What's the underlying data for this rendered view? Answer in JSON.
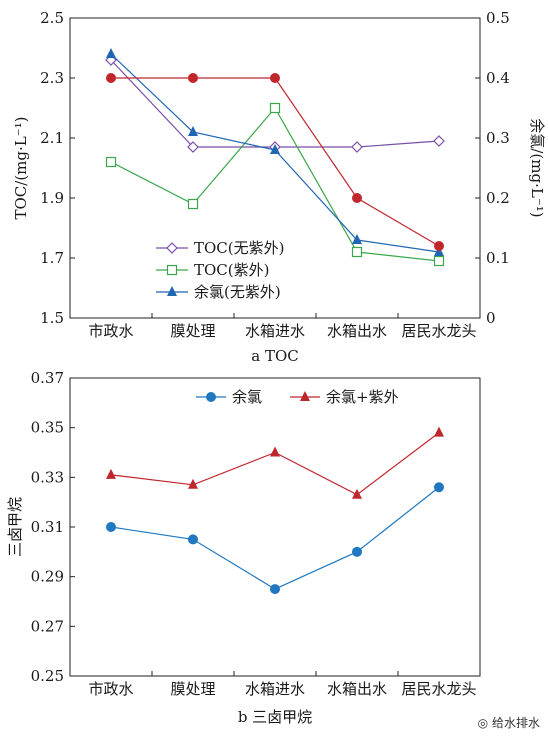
{
  "chart_data": [
    {
      "type": "line",
      "caption": "a TOC",
      "categories": [
        "市政水",
        "膜处理",
        "水箱进水",
        "水箱出水",
        "居民水龙头"
      ],
      "ylabel_left": "TOC/(mg·L⁻¹)",
      "ylabel_right": "余氯/(mg·L⁻¹)",
      "ylim_left": [
        1.5,
        2.5
      ],
      "yticks_left": [
        "1.5",
        "1.7",
        "1.9",
        "2.1",
        "2.3",
        "2.5"
      ],
      "ylim_right": [
        0,
        0.5
      ],
      "yticks_right": [
        "0",
        "0.1",
        "0.2",
        "0.3",
        "0.4",
        "0.5"
      ],
      "legend_position": "bottom-left",
      "series": [
        {
          "name": "TOC(无紫外)",
          "axis": "left",
          "color": "#7b4fa8",
          "marker": "diamond-open",
          "values": [
            2.36,
            2.07,
            2.07,
            2.07,
            2.09
          ]
        },
        {
          "name": "TOC(紫外)",
          "axis": "left",
          "color": "#3aa74b",
          "marker": "square-open",
          "values": [
            2.02,
            1.88,
            2.2,
            1.72,
            1.69
          ]
        },
        {
          "name": "余氯(无紫外)",
          "axis": "right",
          "color": "#1f66b3",
          "marker": "triangle",
          "values": [
            0.44,
            0.31,
            0.28,
            0.13,
            0.11
          ]
        },
        {
          "name": "",
          "axis": "right",
          "color": "#c0272d",
          "marker": "circle",
          "legend": false,
          "values": [
            0.4,
            0.4,
            0.4,
            0.2,
            0.12
          ]
        }
      ]
    },
    {
      "type": "line",
      "caption": "b 三卤甲烷",
      "categories": [
        "市政水",
        "膜处理",
        "水箱进水",
        "水箱出水",
        "居民水龙头"
      ],
      "ylabel": "三卤甲烷",
      "ylim": [
        0.25,
        0.37
      ],
      "yticks": [
        "0.25",
        "0.27",
        "0.29",
        "0.31",
        "0.33",
        "0.35",
        "0.37"
      ],
      "legend_position": "top",
      "series": [
        {
          "name": "余氯",
          "color": "#1f78c1",
          "marker": "circle",
          "values": [
            0.31,
            0.305,
            0.285,
            0.3,
            0.326
          ]
        },
        {
          "name": "余氯+紫外",
          "color": "#c0272d",
          "marker": "triangle",
          "values": [
            0.331,
            0.327,
            0.34,
            0.323,
            0.348
          ]
        }
      ]
    }
  ],
  "watermark": "给水排水"
}
